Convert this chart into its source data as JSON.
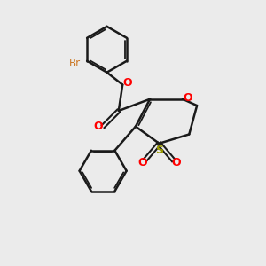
{
  "bg_color": "#EBEBEB",
  "bond_color": "#1a1a1a",
  "oxygen_color": "#FF0000",
  "sulfur_color": "#999900",
  "bromine_color": "#CC7722",
  "lw": 1.8,
  "figsize": [
    3.0,
    3.0
  ],
  "dpi": 100,
  "xlim": [
    0,
    10
  ],
  "ylim": [
    0,
    10
  ]
}
